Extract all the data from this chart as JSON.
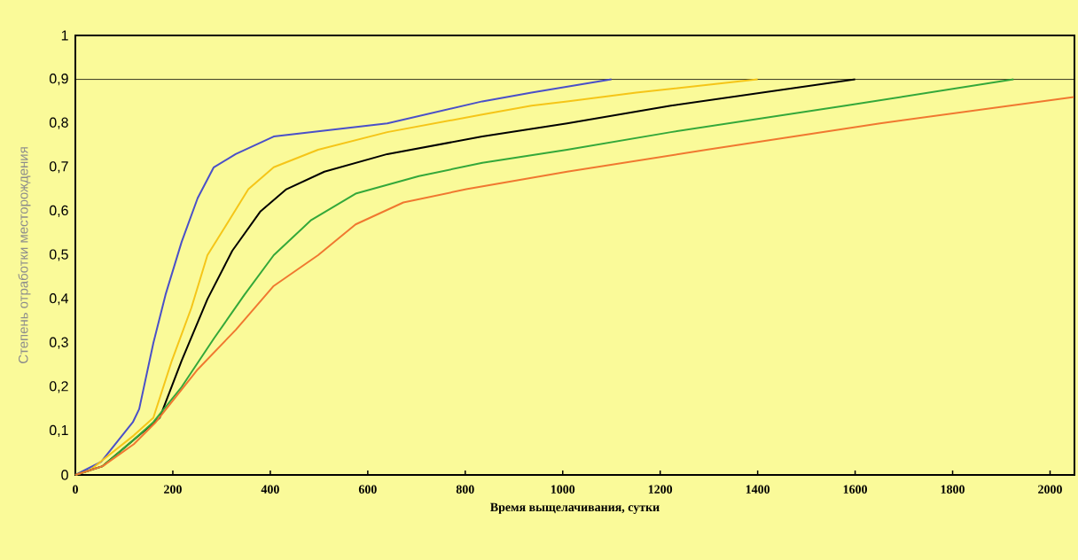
{
  "chart_data": {
    "type": "line",
    "xlabel": "Время выщелачивания, сутки",
    "ylabel": "Степень отработки месторождения",
    "xlim": [
      0,
      2050
    ],
    "ylim": [
      0,
      1
    ],
    "xticks": [
      0,
      200,
      400,
      600,
      800,
      1000,
      1200,
      1400,
      1600,
      1800,
      2000
    ],
    "yticks": [
      0,
      {
        "value": 0.1,
        "label": "0,1"
      },
      {
        "value": 0.2,
        "label": "0,2"
      },
      {
        "value": 0.3,
        "label": "0,3"
      },
      {
        "value": 0.4,
        "label": "0,4"
      },
      {
        "value": 0.5,
        "label": "0,5"
      },
      {
        "value": 0.6,
        "label": "0,6"
      },
      {
        "value": 0.7,
        "label": "0,7"
      },
      {
        "value": 0.8,
        "label": "0,8"
      },
      {
        "value": 0.9,
        "label": "0,9"
      },
      1
    ],
    "line_style": "solid",
    "ref_lines": [
      {
        "axis": "y",
        "value": 0.9,
        "color": "#000000"
      }
    ],
    "series": [
      {
        "color": "#4a50c8",
        "x": [
          0,
          53,
          118,
          131,
          160,
          185,
          218,
          251,
          284,
          329,
          407,
          640,
          835,
          936,
          1100
        ],
        "values": [
          0,
          0.03,
          0.12,
          0.15,
          0.3,
          0.41,
          0.53,
          0.63,
          0.7,
          0.73,
          0.77,
          0.8,
          0.85,
          0.87,
          0.9
        ]
      },
      {
        "color": "#f5c518",
        "x": [
          0,
          29,
          120,
          160,
          198,
          238,
          271,
          316,
          355,
          407,
          498,
          640,
          835,
          936,
          1009,
          1151,
          1400
        ],
        "values": [
          0,
          0.01,
          0.09,
          0.13,
          0.26,
          0.38,
          0.5,
          0.58,
          0.65,
          0.7,
          0.74,
          0.78,
          0.82,
          0.84,
          0.85,
          0.87,
          0.9
        ]
      },
      {
        "color": "#000000",
        "x": [
          0,
          56,
          120,
          173,
          218,
          271,
          322,
          380,
          433,
          511,
          640,
          835,
          1009,
          1222,
          1600
        ],
        "values": [
          0,
          0.02,
          0.08,
          0.13,
          0.26,
          0.4,
          0.51,
          0.6,
          0.65,
          0.69,
          0.73,
          0.77,
          0.8,
          0.84,
          0.9
        ]
      },
      {
        "color": "#34a83a",
        "x": [
          0,
          56,
          120,
          160,
          218,
          284,
          347,
          407,
          484,
          575,
          705,
          835,
          1009,
          1222,
          1580,
          1925
        ],
        "values": [
          0,
          0.02,
          0.08,
          0.12,
          0.2,
          0.31,
          0.41,
          0.5,
          0.58,
          0.64,
          0.68,
          0.71,
          0.74,
          0.78,
          0.84,
          0.9
        ]
      },
      {
        "color": "#f07830",
        "x": [
          0,
          56,
          120,
          165,
          251,
          329,
          407,
          498,
          575,
          673,
          802,
          1009,
          1295,
          1651,
          2049
        ],
        "values": [
          0,
          0.02,
          0.07,
          0.12,
          0.24,
          0.33,
          0.43,
          0.5,
          0.57,
          0.62,
          0.65,
          0.69,
          0.74,
          0.8,
          0.86
        ]
      }
    ]
  }
}
